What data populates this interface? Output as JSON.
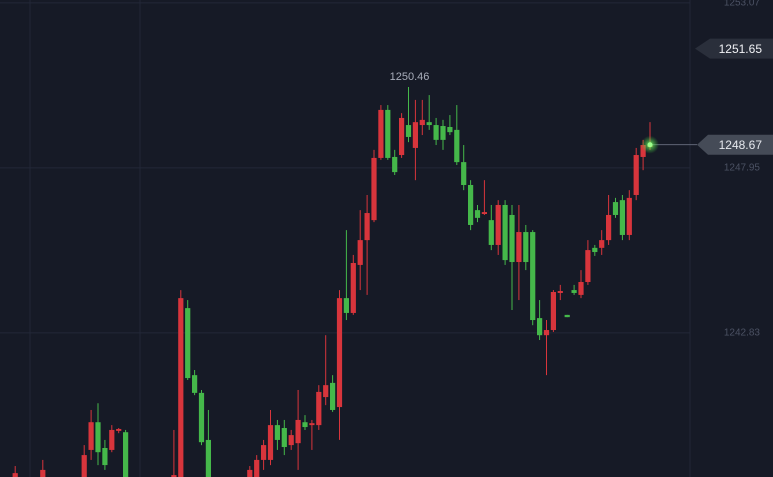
{
  "chart_data": {
    "type": "candlestick",
    "open": [
      1238.36,
      null,
      null,
      null,
      1238.36,
      null,
      null,
      null,
      null,
      null,
      1238.36,
      1239.2,
      1240.06,
      1239.26,
      1239.2,
      1239.79,
      1239.75,
      null,
      null,
      null,
      null,
      null,
      null,
      1238.36,
      1238.36,
      1243.6,
      1241.52,
      1240.97,
      1239.51,
      null,
      null,
      null,
      null,
      null,
      1238.36,
      1238.36,
      1238.89,
      1238.89,
      1239.97,
      1239.88,
      1239.35,
      1239.41,
      1240.06,
      1239.97,
      1239.97,
      1240.84,
      1241.28,
      1240.53,
      1243.91,
      1243.45,
      1244.94,
      1245.71,
      1246.33,
      1248.26,
      1249.75,
      1248.29,
      1248.35,
      1249.28,
      1248.57,
      1249.28,
      1249.37,
      1249.28,
      1249.25,
      1249.22,
      1249.13,
      1248.13,
      1247.42,
      1246.64,
      1246.52,
      1246.33,
      1245.56,
      1246.8,
      1246.49,
      1245.03,
      1245.96,
      1245.96,
      1243.29,
      1242.76,
      1242.92,
      1244.07,
      1243.39,
      1244.16,
      1244.01,
      1244.41,
      1245.47,
      1245.47,
      1245.71,
      1246.89,
      1246.95,
      1245.87,
      1247.11,
      1248.29,
      1248.6
    ],
    "high": [
      1238.7,
      null,
      null,
      null,
      1238.89,
      null,
      null,
      null,
      null,
      null,
      1239.35,
      1240.44,
      1240.65,
      1239.51,
      1239.97,
      1239.88,
      1239.82,
      null,
      null,
      null,
      null,
      null,
      null,
      1239.82,
      1244.16,
      1243.85,
      1241.68,
      1241.06,
      1240.44,
      null,
      null,
      null,
      null,
      null,
      1238.7,
      1239.04,
      1239.51,
      1240.44,
      1240.13,
      1240.13,
      1239.82,
      1241.06,
      1240.28,
      1240.13,
      1241.21,
      1242.76,
      1241.52,
      1244.16,
      1246.02,
      1245.25,
      1246.64,
      1247.11,
      1248.51,
      1249.9,
      1249.9,
      1248.51,
      1249.65,
      1250.46,
      1250.06,
      1250.06,
      1250.21,
      1249.5,
      1249.44,
      1249.59,
      1249.9,
      1248.66,
      1247.57,
      1246.8,
      1247.57,
      1246.8,
      1246.95,
      1246.95,
      1246.8,
      1246.8,
      1246.18,
      1246.02,
      1243.85,
      1243.23,
      1244.16,
      1244.32,
      1243.39,
      1244.32,
      1244.78,
      1245.71,
      1245.56,
      1246.02,
      1247.11,
      1247.02,
      1247.11,
      1247.26,
      1248.57,
      1248.82,
      1249.37
    ],
    "low": [
      1238.36,
      null,
      null,
      null,
      1238.36,
      null,
      null,
      null,
      null,
      null,
      1238.36,
      1238.89,
      1238.73,
      1238.58,
      1239.13,
      1239.72,
      1238.36,
      null,
      null,
      null,
      null,
      null,
      null,
      1238.36,
      1238.36,
      1241.37,
      1240.9,
      1239.35,
      1238.36,
      null,
      null,
      null,
      null,
      null,
      1238.36,
      1238.36,
      1238.58,
      1238.73,
      1239.2,
      1239.04,
      1239.2,
      1238.58,
      1239.82,
      1239.2,
      1239.82,
      1240.59,
      1240.38,
      1239.51,
      1243.23,
      1243.39,
      1244.16,
      1244.01,
      1246.27,
      1248.2,
      1248.2,
      1247.73,
      1248.26,
      1248.75,
      1247.57,
      1248.97,
      1249.13,
      1248.66,
      1248.51,
      1248.97,
      1248.04,
      1247.26,
      1246.02,
      1246.27,
      1246.49,
      1245.4,
      1245.25,
      1244.94,
      1243.54,
      1243.85,
      1244.78,
      1243.07,
      1242.61,
      1241.52,
      1242.86,
      1243.85,
      1243.32,
      1244.01,
      1243.91,
      1244.32,
      1245.22,
      1245.25,
      1245.56,
      1246.4,
      1245.71,
      1245.71,
      1246.95,
      1247.88,
      1248.51
    ],
    "close": [
      1238.48,
      null,
      null,
      null,
      1238.58,
      null,
      null,
      null,
      null,
      null,
      1239.04,
      1240.06,
      1239.13,
      1238.73,
      1239.82,
      1239.85,
      1238.36,
      null,
      null,
      null,
      null,
      null,
      null,
      1238.42,
      1243.91,
      1241.43,
      1240.97,
      1239.44,
      1238.36,
      null,
      null,
      null,
      null,
      null,
      1238.58,
      1238.89,
      1239.35,
      1239.97,
      1239.51,
      1239.29,
      1239.66,
      1240.13,
      1239.91,
      1240.03,
      1241.0,
      1241.21,
      1240.44,
      1243.91,
      1243.45,
      1245.0,
      1245.71,
      1246.55,
      1248.26,
      1249.75,
      1248.26,
      1247.82,
      1249.5,
      1248.91,
      1249.37,
      1249.44,
      1249.28,
      1248.82,
      1248.82,
      1249.06,
      1248.13,
      1247.42,
      1246.18,
      1246.4,
      1246.58,
      1245.56,
      1246.8,
      1245.09,
      1245.03,
      1245.96,
      1245.03,
      1243.23,
      1242.76,
      1242.92,
      1244.1,
      1244.13,
      1243.32,
      1244.07,
      1244.41,
      1245.4,
      1245.34,
      1245.71,
      1246.49,
      1246.49,
      1245.87,
      1247.02,
      1248.35,
      1248.66,
      1248.67
    ],
    "up_color": "#d8353c",
    "down_color": "#45b84a",
    "ylim": [
      1238.36,
      1253.16
    ],
    "yticks": [
      1253.07,
      1247.95,
      1242.83
    ],
    "grid": true,
    "marker_price": 1251.65
  }
}
